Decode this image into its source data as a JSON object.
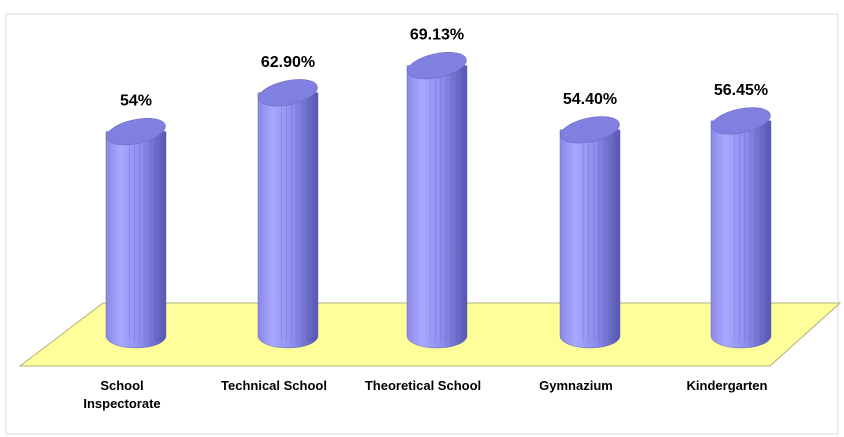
{
  "chart_data": {
    "type": "bar",
    "categories": [
      "School Inspectorate",
      "Technical School",
      "Theoretical School",
      "Gymnazium",
      "Kindergarten"
    ],
    "values": [
      54,
      62.9,
      69.13,
      54.4,
      56.45
    ],
    "value_labels": [
      "54%",
      "62.90%",
      "69.13%",
      "54.40%",
      "56.45%"
    ],
    "color": "#9999ff"
  }
}
